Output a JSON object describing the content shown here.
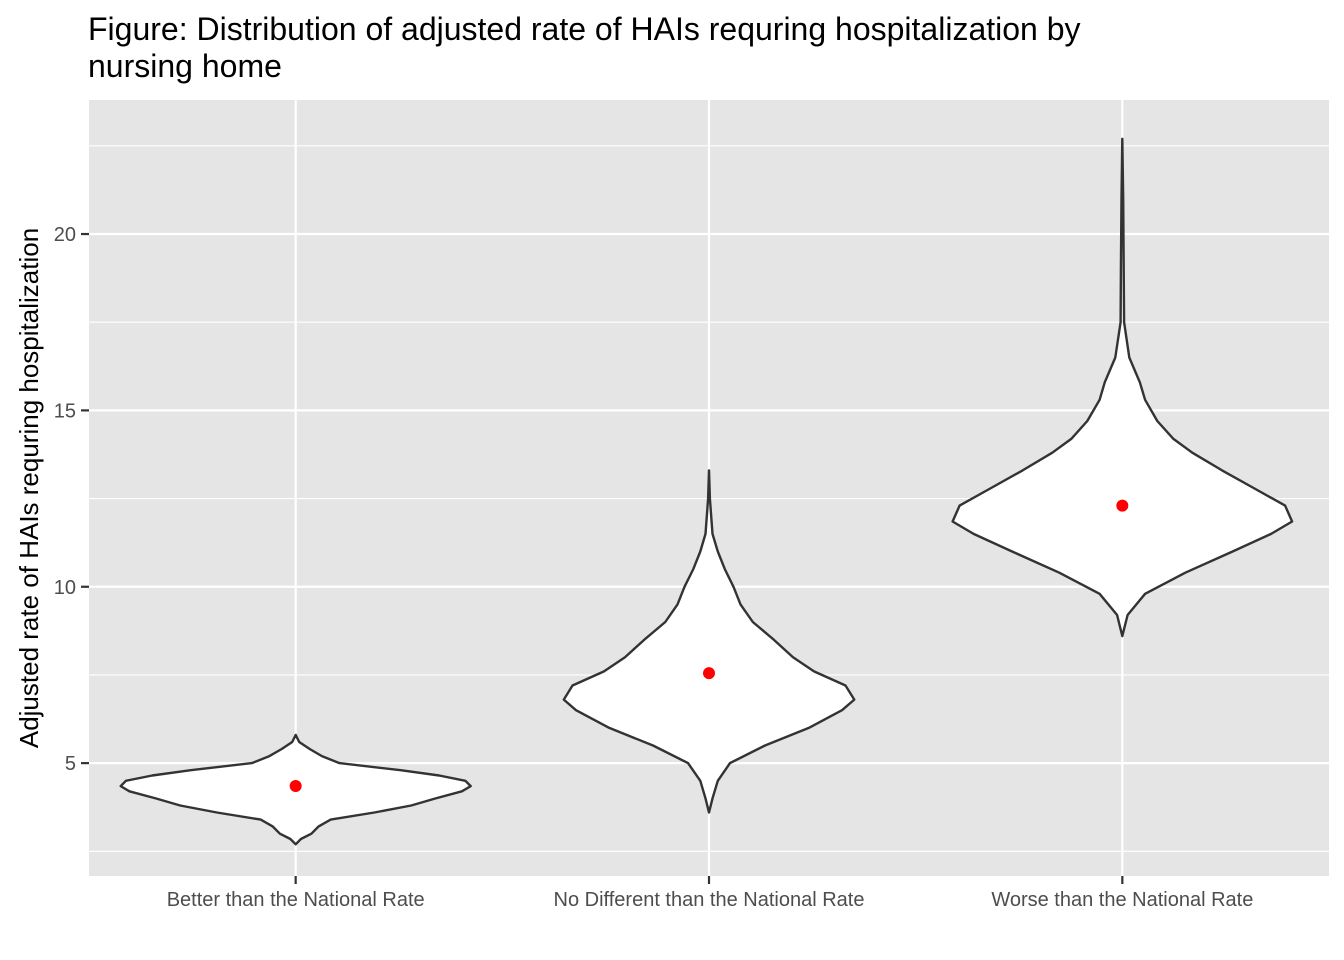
{
  "chart_data": {
    "type": "violin",
    "title_lines": [
      "Figure: Distribution of adjusted rate of HAIs requring hospitalization by",
      "nursing home"
    ],
    "xlabel": "",
    "ylabel": "Adjusted rate of HAIs requring hospitalization",
    "categories": [
      "Better than the National Rate",
      "No Different than the National Rate",
      "Worse than the National Rate"
    ],
    "ylim": [
      1.8,
      23.8
    ],
    "yticks": [
      5,
      10,
      15,
      20
    ],
    "grid": true,
    "legend": "none",
    "colors": {
      "panel_bg": "#e5e5e5",
      "grid": "#ffffff",
      "violin_fill": "#ffffff",
      "violin_outline": "#333333",
      "mean_point": "#ff0000"
    },
    "means": [
      4.35,
      7.55,
      12.3
    ],
    "violins": [
      {
        "category": "Better than the National Rate",
        "range": [
          2.7,
          5.8
        ],
        "profile": [
          [
            2.7,
            0.0
          ],
          [
            2.85,
            0.03
          ],
          [
            3.0,
            0.09
          ],
          [
            3.2,
            0.13
          ],
          [
            3.4,
            0.2
          ],
          [
            3.6,
            0.45
          ],
          [
            3.8,
            0.66
          ],
          [
            4.0,
            0.8
          ],
          [
            4.2,
            0.95
          ],
          [
            4.35,
            1.0
          ],
          [
            4.5,
            0.97
          ],
          [
            4.65,
            0.82
          ],
          [
            4.8,
            0.6
          ],
          [
            5.0,
            0.25
          ],
          [
            5.2,
            0.15
          ],
          [
            5.4,
            0.08
          ],
          [
            5.6,
            0.02
          ],
          [
            5.8,
            0.0
          ]
        ]
      },
      {
        "category": "No Different than the National Rate",
        "range": [
          3.6,
          13.3
        ],
        "profile": [
          [
            3.6,
            0.0
          ],
          [
            4.0,
            0.02
          ],
          [
            4.5,
            0.05
          ],
          [
            5.0,
            0.12
          ],
          [
            5.5,
            0.32
          ],
          [
            6.0,
            0.57
          ],
          [
            6.5,
            0.76
          ],
          [
            6.8,
            0.83
          ],
          [
            7.2,
            0.78
          ],
          [
            7.6,
            0.6
          ],
          [
            8.0,
            0.48
          ],
          [
            8.5,
            0.37
          ],
          [
            9.0,
            0.25
          ],
          [
            9.5,
            0.18
          ],
          [
            10.0,
            0.14
          ],
          [
            10.5,
            0.09
          ],
          [
            11.0,
            0.05
          ],
          [
            11.5,
            0.02
          ],
          [
            12.5,
            0.005
          ],
          [
            13.3,
            0.0
          ]
        ]
      },
      {
        "category": "Worse than the National Rate",
        "range": [
          8.6,
          22.7
        ],
        "profile": [
          [
            8.6,
            0.0
          ],
          [
            9.2,
            0.03
          ],
          [
            9.8,
            0.13
          ],
          [
            10.4,
            0.36
          ],
          [
            11.0,
            0.63
          ],
          [
            11.5,
            0.85
          ],
          [
            11.85,
            0.97
          ],
          [
            12.3,
            0.93
          ],
          [
            12.8,
            0.75
          ],
          [
            13.3,
            0.57
          ],
          [
            13.8,
            0.4
          ],
          [
            14.2,
            0.29
          ],
          [
            14.7,
            0.2
          ],
          [
            15.3,
            0.13
          ],
          [
            15.8,
            0.1
          ],
          [
            16.5,
            0.04
          ],
          [
            17.5,
            0.01
          ],
          [
            19.0,
            0.008
          ],
          [
            21.0,
            0.005
          ],
          [
            22.7,
            0.0
          ]
        ]
      }
    ]
  }
}
